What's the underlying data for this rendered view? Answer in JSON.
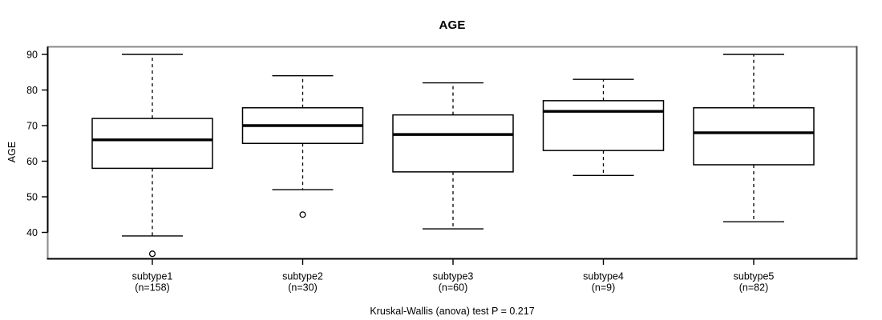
{
  "chart_data": {
    "type": "boxplot",
    "title": "AGE",
    "ylabel": "AGE",
    "xlabel": "",
    "ylim": [
      32,
      92
    ],
    "y_ticks": [
      40,
      50,
      60,
      70,
      80,
      90
    ],
    "grid": false,
    "legend": false,
    "footnote": "Kruskal-Wallis (anova) test P = 0.217",
    "series": [
      {
        "name": "subtype1",
        "sublabel": "(n=158)",
        "n": 158,
        "whisker_low": 39,
        "q1": 58,
        "median": 66,
        "q3": 72,
        "whisker_high": 90,
        "outliers": [
          34
        ]
      },
      {
        "name": "subtype2",
        "sublabel": "(n=30)",
        "n": 30,
        "whisker_low": 52,
        "q1": 65,
        "median": 70,
        "q3": 75,
        "whisker_high": 84,
        "outliers": [
          45
        ]
      },
      {
        "name": "subtype3",
        "sublabel": "(n=60)",
        "n": 60,
        "whisker_low": 41,
        "q1": 57,
        "median": 67.5,
        "q3": 73,
        "whisker_high": 82,
        "outliers": []
      },
      {
        "name": "subtype4",
        "sublabel": "(n=9)",
        "n": 9,
        "whisker_low": 56,
        "q1": 63,
        "median": 74,
        "q3": 77,
        "whisker_high": 83,
        "outliers": []
      },
      {
        "name": "subtype5",
        "sublabel": "(n=82)",
        "n": 82,
        "whisker_low": 43,
        "q1": 59,
        "median": 68,
        "q3": 75,
        "whisker_high": 90,
        "outliers": []
      }
    ]
  },
  "colors": {
    "line": "#000000",
    "box_fill": "#ffffff",
    "frame_gray": "#8a8a8a",
    "frame_dark": "#4d4d4d",
    "background": "#ffffff"
  }
}
